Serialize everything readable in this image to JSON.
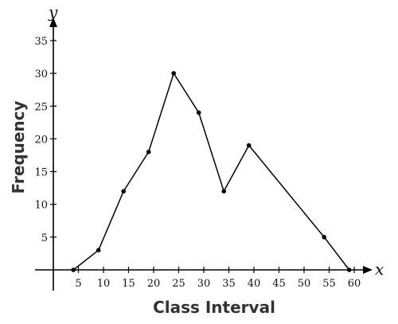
{
  "chart_data": {
    "type": "line",
    "title": "",
    "xlabel": "Class Interval",
    "ylabel": "Frequency",
    "x_axis_letter": "x",
    "y_axis_letter": "y",
    "x_ticks": [
      5,
      10,
      15,
      20,
      25,
      30,
      35,
      40,
      45,
      50,
      55,
      60
    ],
    "y_ticks": [
      5,
      10,
      15,
      20,
      25,
      30,
      35
    ],
    "xlim": [
      0,
      62
    ],
    "ylim": [
      0,
      35
    ],
    "grid": false,
    "series": [
      {
        "x": [
          4,
          9,
          14,
          19,
          24,
          29,
          34,
          39,
          54,
          59
        ],
        "y": [
          0,
          3,
          12,
          18,
          30,
          24,
          12,
          19,
          5,
          0
        ]
      }
    ],
    "colors": {
      "line": "#000000",
      "axis": "#000000"
    }
  }
}
